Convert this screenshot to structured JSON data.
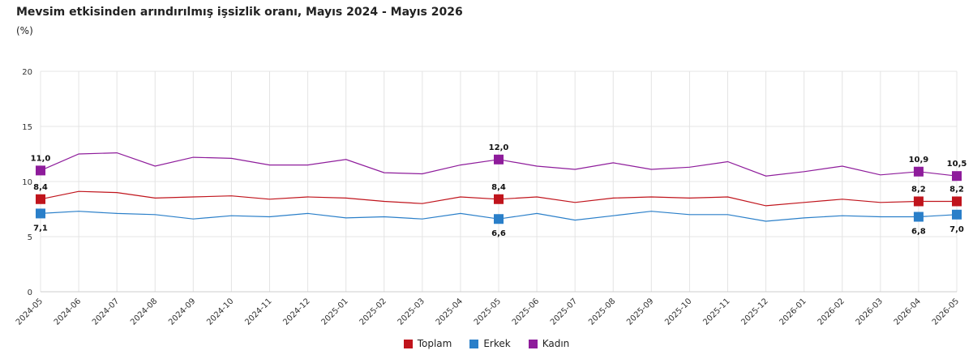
{
  "chart_data": {
    "type": "line",
    "title": "Mevsim etkisinden arındırılmış işsizlik oranı, Mayıs 2024 - Mayıs 2026",
    "subtitle": "(%)",
    "ylim": [
      0,
      20
    ],
    "yticks": [
      "0",
      "5",
      "10",
      "15",
      "20"
    ],
    "grid": true,
    "legend_position": "bottom-center",
    "categories": [
      "2024-05",
      "2024-06",
      "2024-07",
      "2024-08",
      "2024-09",
      "2024-10",
      "2024-11",
      "2024-12",
      "2025-01",
      "2025-02",
      "2025-03",
      "2025-04",
      "2025-05",
      "2025-06",
      "2025-07",
      "2025-08",
      "2025-09",
      "2025-10",
      "2025-11",
      "2025-12",
      "2026-01",
      "2026-02",
      "2026-03",
      "2026-04",
      "2026-05"
    ],
    "series": [
      {
        "name": "Toplam",
        "color": "#c0141c",
        "values": [
          8.4,
          9.1,
          9.0,
          8.5,
          8.6,
          8.7,
          8.4,
          8.6,
          8.5,
          8.2,
          8.0,
          8.6,
          8.4,
          8.6,
          8.1,
          8.5,
          8.6,
          8.5,
          8.6,
          7.8,
          8.1,
          8.4,
          8.1,
          8.2,
          8.2
        ],
        "labels": [
          {
            "index": 0,
            "text": "8,4",
            "pos": "above"
          },
          {
            "index": 12,
            "text": "8,4",
            "pos": "above"
          },
          {
            "index": 23,
            "text": "8,2",
            "pos": "above"
          },
          {
            "index": 24,
            "text": "8,2",
            "pos": "above"
          }
        ]
      },
      {
        "name": "Erkek",
        "color": "#2a7fc9",
        "values": [
          7.1,
          7.3,
          7.1,
          7.0,
          6.6,
          6.9,
          6.8,
          7.1,
          6.7,
          6.8,
          6.6,
          7.1,
          6.6,
          7.1,
          6.5,
          6.9,
          7.3,
          7.0,
          7.0,
          6.4,
          6.7,
          6.9,
          6.8,
          6.8,
          7.0
        ],
        "labels": [
          {
            "index": 0,
            "text": "7,1",
            "pos": "below"
          },
          {
            "index": 12,
            "text": "6,6",
            "pos": "below"
          },
          {
            "index": 23,
            "text": "6,8",
            "pos": "below"
          },
          {
            "index": 24,
            "text": "7,0",
            "pos": "below"
          }
        ]
      },
      {
        "name": "Kadın",
        "color": "#8e1c9b",
        "values": [
          11.0,
          12.5,
          12.6,
          11.4,
          12.2,
          12.1,
          11.5,
          11.5,
          12.0,
          10.8,
          10.7,
          11.5,
          12.0,
          11.4,
          11.1,
          11.7,
          11.1,
          11.3,
          11.8,
          10.5,
          10.9,
          11.4,
          10.6,
          10.9,
          10.5
        ],
        "labels": [
          {
            "index": 0,
            "text": "11,0",
            "pos": "above"
          },
          {
            "index": 12,
            "text": "12,0",
            "pos": "above"
          },
          {
            "index": 23,
            "text": "10,9",
            "pos": "above"
          },
          {
            "index": 24,
            "text": "10,5",
            "pos": "above"
          }
        ]
      }
    ]
  }
}
